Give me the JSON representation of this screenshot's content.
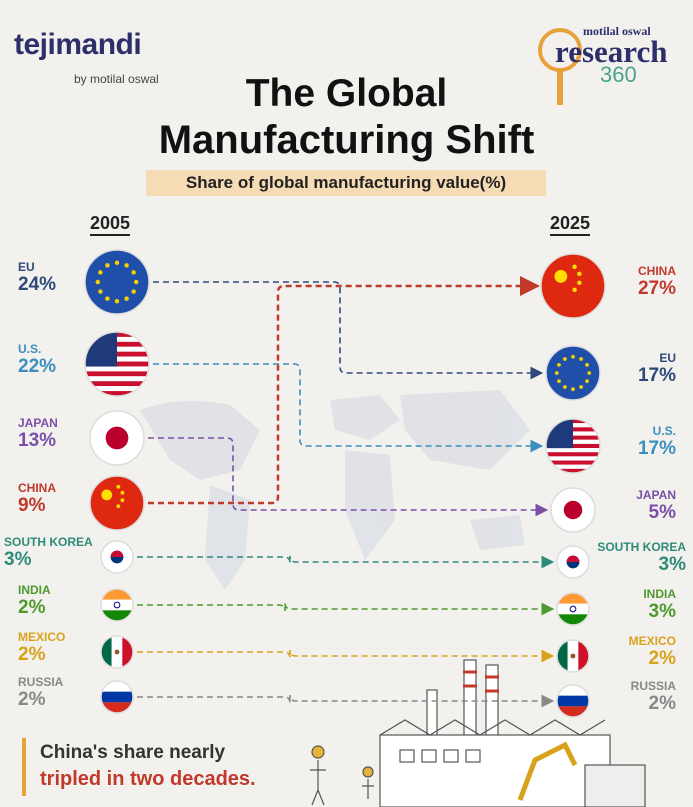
{
  "brand": {
    "name": "tejimandi",
    "sub": "by motilal oswal"
  },
  "research": {
    "top": "motilal oswal",
    "mid": "research",
    "num": "360"
  },
  "title_line1": "The Global",
  "title_line2": "Manufacturing Shift",
  "subtitle": "Share of global manufacturing value(%)",
  "callout": {
    "line1": "China's share nearly",
    "line2": "tripled in two decades."
  },
  "colors": {
    "EU": "#2f4a7a",
    "U.S.": "#3a8fbf",
    "JAPAN": "#7b4fa8",
    "CHINA": "#c0392b",
    "SOUTH KOREA": "#2e8b7a",
    "INDIA": "#4f9a2e",
    "MEXICO": "#d9a21b",
    "RUSSIA": "#888888"
  },
  "chart_data": {
    "type": "slope",
    "title": "The Global Manufacturing Shift",
    "subtitle": "Share of global manufacturing value(%)",
    "years": [
      "2005",
      "2025"
    ],
    "left": [
      {
        "name": "EU",
        "label": "24%",
        "value": 24
      },
      {
        "name": "U.S.",
        "label": "22%",
        "value": 22
      },
      {
        "name": "JAPAN",
        "label": "13%",
        "value": 13
      },
      {
        "name": "CHINA",
        "label": "9%",
        "value": 9
      },
      {
        "name": "SOUTH KOREA",
        "label": "3%",
        "value": 3
      },
      {
        "name": "INDIA",
        "label": "2%",
        "value": 2
      },
      {
        "name": "MEXICO",
        "label": "2%",
        "value": 2
      },
      {
        "name": "RUSSIA",
        "label": "2%",
        "value": 2
      }
    ],
    "right": [
      {
        "name": "CHINA",
        "label": "27%",
        "value": 27
      },
      {
        "name": "EU",
        "label": "17%",
        "value": 17
      },
      {
        "name": "U.S.",
        "label": "17%",
        "value": 17
      },
      {
        "name": "JAPAN",
        "label": "5%",
        "value": 5
      },
      {
        "name": "SOUTH KOREA",
        "label": "3%",
        "value": 3
      },
      {
        "name": "INDIA",
        "label": "3%",
        "value": 3
      },
      {
        "name": "MEXICO",
        "label": "2%",
        "value": 2
      },
      {
        "name": "RUSSIA",
        "label": "2%",
        "value": 2
      }
    ]
  }
}
